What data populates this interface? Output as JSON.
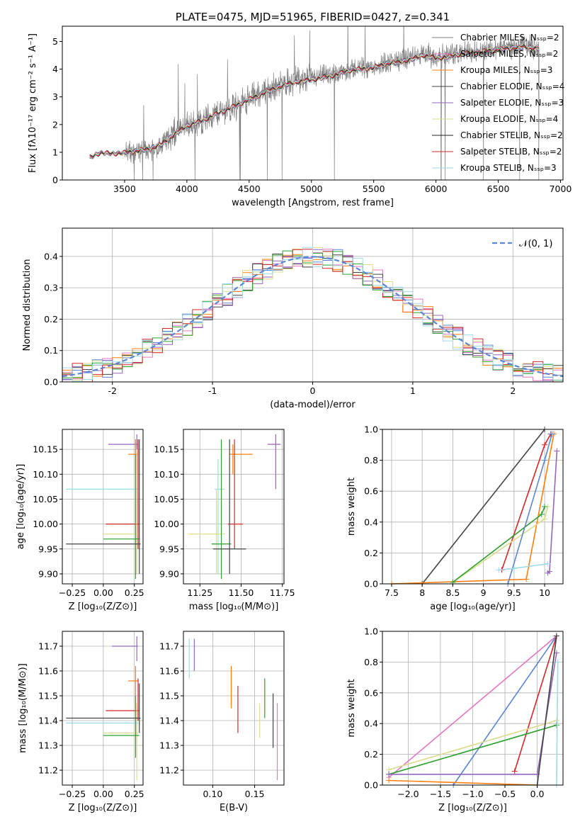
{
  "colors": {
    "series": [
      "#7f7f7f",
      "#e377c2",
      "#ff7f0e",
      "#444444",
      "#9467bd",
      "#dbdb8d",
      "#222222",
      "#d62728",
      "#9edae5"
    ],
    "extra": [
      "#5b86d6",
      "#2ca02c",
      "#17becf",
      "#8c564b",
      "#bcbd22",
      "#1f77b4"
    ],
    "gauss": "#5b86d6",
    "grid": "#b0b0b0"
  },
  "chart_data": [
    {
      "type": "line",
      "title": "PLATE=0475, MJD=51965, FIBERID=0427, z=0.341",
      "xlabel": "wavelength [Angstrom, rest frame]",
      "ylabel": "Flux [fλ10⁻¹⁷ erg cm⁻² s⁻¹ A⁻¹]",
      "xlim": [
        3000,
        7020
      ],
      "ylim": [
        0,
        5.55
      ],
      "xticks": [
        3500,
        4000,
        4500,
        5000,
        5500,
        6000,
        6500,
        7000
      ],
      "yticks": [
        0,
        1,
        2,
        3,
        4,
        5
      ],
      "grid": false,
      "legend_position": "upper-right",
      "observed_spectrum": {
        "x": [
          3220,
          3300,
          3400,
          3500,
          3600,
          3700,
          3800,
          3900,
          4000,
          4100,
          4200,
          4300,
          4400,
          4500,
          4600,
          4700,
          4800,
          4900,
          5000,
          5100,
          5200,
          5300,
          5400,
          5500,
          5600,
          5700,
          5800,
          5900,
          6000,
          6100,
          6200,
          6300,
          6400,
          6500,
          6600,
          6700,
          6800
        ],
        "y": [
          0.8,
          1.0,
          0.95,
          1.0,
          1.05,
          1.1,
          1.3,
          1.7,
          1.95,
          2.1,
          2.35,
          2.5,
          2.7,
          2.95,
          3.15,
          3.35,
          3.5,
          3.6,
          3.65,
          3.75,
          3.85,
          4.0,
          4.05,
          4.1,
          4.25,
          4.3,
          4.4,
          4.55,
          4.45,
          4.5,
          4.6,
          4.65,
          4.7,
          4.75,
          4.8,
          4.85,
          4.8
        ]
      },
      "model_spectrum": {
        "x": [
          3220,
          3300,
          3400,
          3500,
          3600,
          3700,
          3800,
          3900,
          4000,
          4100,
          4200,
          4300,
          4400,
          4500,
          4600,
          4700,
          4800,
          4900,
          5000,
          5100,
          5200,
          5300,
          5400,
          5500,
          5600,
          5700,
          5800,
          5900,
          6000,
          6100,
          6200,
          6300,
          6400,
          6500,
          6600,
          6700,
          6800
        ],
        "y": [
          0.8,
          0.98,
          0.95,
          0.98,
          1.05,
          1.12,
          1.3,
          1.65,
          1.95,
          2.1,
          2.3,
          2.5,
          2.7,
          2.9,
          3.1,
          3.3,
          3.45,
          3.55,
          3.62,
          3.7,
          3.8,
          3.95,
          4.0,
          4.05,
          4.2,
          4.25,
          4.35,
          4.5,
          4.4,
          4.45,
          4.55,
          4.6,
          4.65,
          4.7,
          4.75,
          4.8,
          4.75
        ]
      },
      "series": [
        {
          "name": "Chabrier MILES, Nₛₛₚ=2"
        },
        {
          "name": "Salpeter MILES, Nₛₛₚ=2"
        },
        {
          "name": "Kroupa MILES, Nₛₛₚ=3"
        },
        {
          "name": "Chabrier ELODIE, Nₛₛₚ=4"
        },
        {
          "name": "Salpeter ELODIE, Nₛₛₚ=3"
        },
        {
          "name": "Kroupa ELODIE, Nₛₛₚ=4"
        },
        {
          "name": "Chabrier STELIB, Nₛₛₚ=2"
        },
        {
          "name": "Salpeter STELIB, Nₛₛₚ=2"
        },
        {
          "name": "Kroupa STELIB, Nₛₛₚ=3"
        }
      ]
    },
    {
      "type": "step",
      "xlabel": "(data-model)/error",
      "ylabel": "Normed distribution",
      "xlim": [
        -2.5,
        2.5
      ],
      "ylim": [
        0,
        0.49
      ],
      "xticks": [
        -2,
        -1,
        0,
        1,
        2
      ],
      "yticks": [
        0.0,
        0.1,
        0.2,
        0.3,
        0.4
      ],
      "grid": true,
      "legend_position": "upper-right",
      "gaussian_label": "𝒩(0, 1)",
      "bin_width": 0.1
    },
    {
      "type": "errorbar",
      "xlabel": "Z [log₁₀(Z/Z⊙)]",
      "ylabel": "age  [log₁₀(age/yr)]",
      "xlim": [
        -0.33,
        0.32
      ],
      "ylim": [
        9.88,
        10.19
      ],
      "xticks": [
        -0.25,
        0.0,
        0.25
      ],
      "xtick_labels": [
        "−0.25",
        "0.00",
        "0.25"
      ],
      "yticks": [
        9.9,
        9.95,
        10.0,
        10.05,
        10.1,
        10.15
      ],
      "grid": true,
      "points": [
        {
          "x": 0.27,
          "y": 10.07,
          "xlo": -0.3,
          "xhi": 0.28,
          "ylo": 9.9,
          "yhi": 10.17
        },
        {
          "x": 0.27,
          "y": 10.16,
          "xlo": 0.04,
          "xhi": 0.28,
          "ylo": 10.15,
          "yhi": 10.18
        },
        {
          "x": 0.26,
          "y": 10.14,
          "xlo": 0.2,
          "xhi": 0.28,
          "ylo": 10.1,
          "yhi": 10.17
        },
        {
          "x": 0.28,
          "y": 10.0,
          "xlo": 0.02,
          "xhi": 0.29,
          "ylo": 9.95,
          "yhi": 10.17
        },
        {
          "x": 0.27,
          "y": 9.98,
          "xlo": 0.0,
          "xhi": 0.28,
          "ylo": 9.9,
          "yhi": 10.15
        },
        {
          "x": 0.26,
          "y": 9.97,
          "xlo": 0.0,
          "xhi": 0.29,
          "ylo": 9.89,
          "yhi": 10.14
        },
        {
          "x": 0.29,
          "y": 9.96,
          "xlo": -0.3,
          "xhi": 0.3,
          "ylo": 9.9,
          "yhi": 10.17
        }
      ]
    },
    {
      "type": "errorbar",
      "xlabel": "mass [log₁₀(M/M⊙)]",
      "ylabel": "",
      "xlim": [
        11.15,
        11.76
      ],
      "ylim": [
        9.88,
        10.19
      ],
      "xticks": [
        11.25,
        11.5,
        11.75
      ],
      "xtick_labels": [
        "11.25",
        "11.50",
        "11.75"
      ],
      "yticks": [
        9.9,
        9.95,
        10.0,
        10.05,
        10.1,
        10.15
      ],
      "grid": true,
      "points": [
        {
          "x": 11.36,
          "y": 10.07,
          "xlo": 11.34,
          "xhi": 11.4,
          "ylo": 9.9,
          "yhi": 10.13
        },
        {
          "x": 11.71,
          "y": 10.16,
          "xlo": 11.66,
          "xhi": 11.74,
          "ylo": 10.07,
          "yhi": 10.18
        },
        {
          "x": 11.45,
          "y": 10.14,
          "xlo": 11.43,
          "xhi": 11.57,
          "ylo": 10.1,
          "yhi": 10.16
        },
        {
          "x": 11.46,
          "y": 10.0,
          "xlo": 11.42,
          "xhi": 11.51,
          "ylo": 9.95,
          "yhi": 10.17
        },
        {
          "x": 11.35,
          "y": 9.98,
          "xlo": 11.18,
          "xhi": 11.4,
          "ylo": 9.9,
          "yhi": 10.07
        },
        {
          "x": 11.38,
          "y": 9.96,
          "xlo": 11.32,
          "xhi": 11.44,
          "ylo": 9.89,
          "yhi": 10.17
        },
        {
          "x": 11.43,
          "y": 9.95,
          "xlo": 11.33,
          "xhi": 11.53,
          "ylo": 9.9,
          "yhi": 10.17
        }
      ]
    },
    {
      "type": "line",
      "xlabel": "age  [log₁₀(age/yr)]",
      "ylabel": "mass weight",
      "xlim": [
        7.35,
        10.3
      ],
      "ylim": [
        0,
        1.0
      ],
      "xticks": [
        7.5,
        8.0,
        8.5,
        9.0,
        9.5,
        10.0
      ],
      "yticks": [
        0.0,
        0.2,
        0.4,
        0.6,
        0.8,
        1.0
      ],
      "grid": true,
      "series": [
        {
          "x": [
            8.0,
            10.0
          ],
          "y": [
            0.0,
            1.0
          ]
        },
        {
          "x": [
            7.5,
            9.7,
            10.15
          ],
          "y": [
            0.0,
            0.03,
            0.97
          ]
        },
        {
          "x": [
            9.3,
            10.0,
            10.1
          ],
          "y": [
            0.09,
            0.9,
            0.97
          ]
        },
        {
          "x": [
            8.5,
            10.0,
            10.05
          ],
          "y": [
            0.01,
            0.42,
            0.5
          ]
        },
        {
          "x": [
            8.5,
            9.95,
            10.0
          ],
          "y": [
            0.01,
            0.45,
            0.5
          ]
        },
        {
          "x": [
            9.4,
            10.0,
            10.12
          ],
          "y": [
            0.0,
            0.8,
            0.97
          ]
        },
        {
          "x": [
            10.05,
            10.08,
            10.2
          ],
          "y": [
            0.07,
            0.08,
            0.86
          ]
        },
        {
          "x": [
            9.25,
            9.5,
            10.05
          ],
          "y": [
            0.09,
            0.1,
            0.13
          ]
        }
      ]
    },
    {
      "type": "errorbar",
      "xlabel": "Z [log₁₀(Z/Z⊙)]",
      "ylabel": "mass [log₁₀(M/M⊙)]",
      "xlim": [
        -0.33,
        0.32
      ],
      "ylim": [
        11.14,
        11.76
      ],
      "xticks": [
        -0.25,
        0.0,
        0.25
      ],
      "xtick_labels": [
        "−0.25",
        "0.00",
        "0.25"
      ],
      "yticks": [
        11.2,
        11.3,
        11.4,
        11.5,
        11.6,
        11.7
      ],
      "grid": true,
      "points": [
        {
          "x": 0.27,
          "y": 11.39,
          "xlo": -0.3,
          "xhi": 0.28,
          "ylo": 11.35,
          "yhi": 11.45
        },
        {
          "x": 0.27,
          "y": 11.7,
          "xlo": 0.07,
          "xhi": 0.28,
          "ylo": 11.64,
          "yhi": 11.74
        },
        {
          "x": 0.26,
          "y": 11.56,
          "xlo": 0.2,
          "xhi": 0.28,
          "ylo": 11.45,
          "yhi": 11.62
        },
        {
          "x": 0.28,
          "y": 11.44,
          "xlo": 0.02,
          "xhi": 0.29,
          "ylo": 11.4,
          "yhi": 11.57
        },
        {
          "x": 0.27,
          "y": 11.35,
          "xlo": 0.0,
          "xhi": 0.28,
          "ylo": 11.16,
          "yhi": 11.47
        },
        {
          "x": 0.26,
          "y": 11.34,
          "xlo": 0.0,
          "xhi": 0.29,
          "ylo": 11.25,
          "yhi": 11.5
        },
        {
          "x": 0.29,
          "y": 11.41,
          "xlo": -0.3,
          "xhi": 0.3,
          "ylo": 11.35,
          "yhi": 11.55
        }
      ]
    },
    {
      "type": "errorbar",
      "xlabel": "E(B-V)",
      "ylabel": "",
      "xlim": [
        0.065,
        0.185
      ],
      "ylim": [
        11.14,
        11.76
      ],
      "xticks": [
        0.1,
        0.15
      ],
      "xtick_labels": [
        "0.10",
        "0.15"
      ],
      "yticks": [
        11.2,
        11.3,
        11.4,
        11.5,
        11.6,
        11.7
      ],
      "grid": true,
      "points": [
        {
          "x": 0.072,
          "y": 11.65,
          "ylo": 11.57,
          "yhi": 11.73
        },
        {
          "x": 0.078,
          "y": 11.66,
          "ylo": 11.6,
          "yhi": 11.73
        },
        {
          "x": 0.122,
          "y": 11.53,
          "ylo": 11.45,
          "yhi": 11.62
        },
        {
          "x": 0.13,
          "y": 11.44,
          "ylo": 11.35,
          "yhi": 11.54
        },
        {
          "x": 0.156,
          "y": 11.4,
          "ylo": 11.33,
          "yhi": 11.47
        },
        {
          "x": 0.162,
          "y": 11.49,
          "ylo": 11.41,
          "yhi": 11.57
        },
        {
          "x": 0.172,
          "y": 11.41,
          "ylo": 11.29,
          "yhi": 11.51
        },
        {
          "x": 0.177,
          "y": 11.3,
          "ylo": 11.16,
          "yhi": 11.47
        }
      ]
    },
    {
      "type": "line",
      "xlabel": "Z [log₁₀(Z/Z⊙)]",
      "ylabel": "mass weight",
      "xlim": [
        -2.4,
        0.4
      ],
      "ylim": [
        0,
        1.0
      ],
      "xticks": [
        -2.0,
        -1.5,
        -1.0,
        -0.5,
        0.0
      ],
      "xtick_labels": [
        "−2.0",
        "−1.5",
        "−1.0",
        "−0.5",
        "0.0"
      ],
      "yticks": [
        0.0,
        0.2,
        0.4,
        0.6,
        0.8,
        1.0
      ],
      "grid": true,
      "series": [
        {
          "x": [
            -2.3,
            0.3
          ],
          "y": [
            0.05,
            0.97
          ]
        },
        {
          "x": [
            -1.3,
            0.3
          ],
          "y": [
            0.0,
            0.97
          ]
        },
        {
          "x": [
            -0.35,
            0.3
          ],
          "y": [
            0.09,
            0.97
          ]
        },
        {
          "x": [
            -2.3,
            0.3
          ],
          "y": [
            0.1,
            0.42
          ]
        },
        {
          "x": [
            -2.3,
            0.3
          ],
          "y": [
            0.07,
            0.39
          ]
        },
        {
          "x": [
            -2.3,
            0.0,
            0.3
          ],
          "y": [
            0.07,
            0.07,
            0.86
          ]
        },
        {
          "x": [
            -2.3,
            0.0
          ],
          "y": [
            0.03,
            0.0
          ]
        },
        {
          "x": [
            0.0,
            0.3
          ],
          "y": [
            0.0,
            0.97
          ]
        },
        {
          "x": [
            0.3,
            0.32
          ],
          "y": [
            0.0,
            0.8
          ]
        }
      ]
    }
  ]
}
